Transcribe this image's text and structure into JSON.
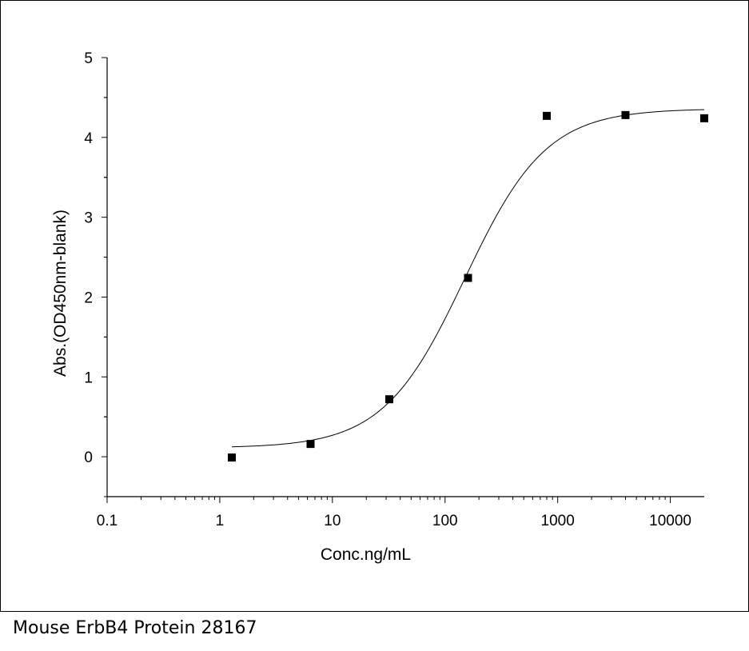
{
  "caption": "Mouse ErbB4 Protein 28167",
  "colors": {
    "axis": "#000000",
    "marker": "#000000",
    "curve": "#000000"
  },
  "chart_data": {
    "type": "scatter",
    "xscale": "log",
    "xlabel": "Conc.ng/mL",
    "ylabel": "Abs.(OD450nm-blank)",
    "xlim": [
      0.1,
      20000
    ],
    "ylim": [
      -0.5,
      5
    ],
    "xticks": [
      0.1,
      1,
      10,
      100,
      1000,
      10000
    ],
    "xtick_labels": [
      "0.1",
      "1",
      "10",
      "100",
      "1000",
      "10000"
    ],
    "yticks": [
      0,
      1,
      2,
      3,
      4,
      5
    ],
    "ytick_labels": [
      "0",
      "1",
      "2",
      "3",
      "4",
      "5"
    ],
    "grid": false,
    "series": [
      {
        "marker": "square",
        "x": [
          1.28,
          6.4,
          32,
          160,
          800,
          4000,
          20000
        ],
        "y": [
          -0.01,
          0.16,
          0.72,
          2.24,
          4.27,
          4.28,
          4.24
        ]
      }
    ],
    "fit_curve": {
      "model": "4PL",
      "bottom": 0.11,
      "top": 4.36,
      "ec50": 150,
      "hill": 1.2,
      "x_range": [
        1.28,
        20000
      ]
    }
  }
}
